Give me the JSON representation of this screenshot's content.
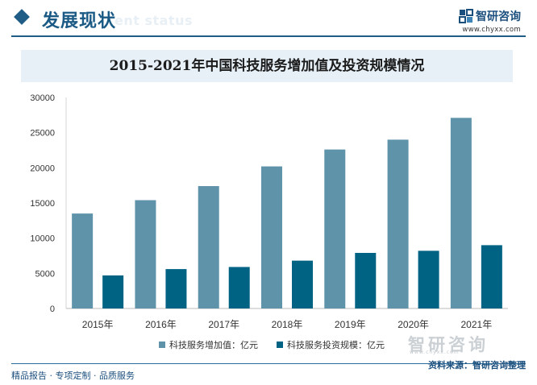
{
  "header": {
    "title": "发展现状",
    "ghost_text": "ent status",
    "brand_name": "智研咨询",
    "brand_url": "www.chyxx.com",
    "logo_icon": "zhiyan-logo-icon"
  },
  "footer": {
    "left_text": "精品报告 · 专项定制 · 品质服务",
    "source": "资料来源：智研咨询整理",
    "watermark_text": "智研咨询",
    "watermark_url": "www.chyxx.com"
  },
  "colors": {
    "accent": "#1f5d86",
    "series1": "#5f93aa",
    "series2": "#006384",
    "title_band": "#e7f0f7"
  },
  "chart_data": {
    "type": "bar",
    "title": "2015-2021年中国科技服务增加值及投资规模情况",
    "xlabel": "",
    "ylabel": "",
    "categories": [
      "2015年",
      "2016年",
      "2017年",
      "2018年",
      "2019年",
      "2020年",
      "2021年"
    ],
    "ylim": [
      0,
      30000
    ],
    "yticks": [
      0,
      5000,
      10000,
      15000,
      20000,
      25000,
      30000
    ],
    "grid": false,
    "legend_position": "bottom",
    "series": [
      {
        "name": "科技服务增加值：亿元",
        "color": "#5f93aa",
        "values": [
          13500,
          15400,
          17400,
          20200,
          22600,
          24000,
          27100
        ]
      },
      {
        "name": "科技服务投资规模：亿元",
        "color": "#006384",
        "values": [
          4700,
          5600,
          5900,
          6800,
          7900,
          8200,
          9000
        ]
      }
    ]
  }
}
